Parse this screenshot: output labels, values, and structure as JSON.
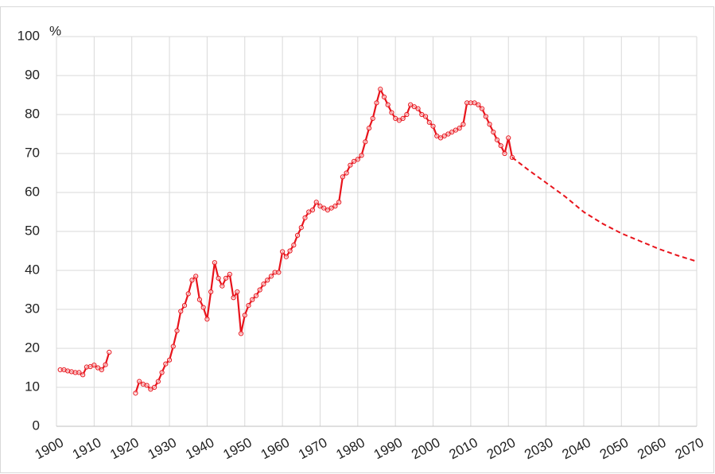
{
  "chart_data": {
    "type": "line",
    "y_unit": "%",
    "xlim": [
      1900,
      2070
    ],
    "xticks": [
      1900,
      1910,
      1920,
      1930,
      1940,
      1950,
      1960,
      1970,
      1980,
      1990,
      2000,
      2010,
      2020,
      2030,
      2040,
      2050,
      2060,
      2070
    ],
    "ylim": [
      0,
      100
    ],
    "yticks": [
      0,
      10,
      20,
      30,
      40,
      50,
      60,
      70,
      80,
      90,
      100
    ],
    "grid": true,
    "series": [
      {
        "color": "#e8141c",
        "dashed": false,
        "markers": true,
        "x": [
          1901,
          1902,
          1903,
          1904,
          1905,
          1906,
          1907,
          1908,
          1909,
          1910,
          1911,
          1912,
          1913,
          1914,
          1915,
          1916,
          1917,
          1918,
          1919,
          1920,
          1921,
          1922,
          1923,
          1924,
          1925,
          1926,
          1927,
          1928,
          1929,
          1930,
          1931,
          1932,
          1933,
          1934,
          1935,
          1936,
          1937,
          1938,
          1939,
          1940,
          1941,
          1942,
          1943,
          1944,
          1945,
          1946,
          1947,
          1948,
          1949,
          1950,
          1951,
          1952,
          1953,
          1954,
          1955,
          1956,
          1957,
          1958,
          1959,
          1960,
          1961,
          1962,
          1963,
          1964,
          1965,
          1966,
          1967,
          1968,
          1969,
          1970,
          1971,
          1972,
          1973,
          1974,
          1975,
          1976,
          1977,
          1978,
          1979,
          1980,
          1981,
          1982,
          1983,
          1984,
          1985,
          1986,
          1987,
          1988,
          1989,
          1990,
          1991,
          1992,
          1993,
          1994,
          1995,
          1996,
          1997,
          1998,
          1999,
          2000,
          2001,
          2002,
          2003,
          2004,
          2005,
          2006,
          2007,
          2008,
          2009,
          2010,
          2011,
          2012,
          2013,
          2014,
          2015,
          2016,
          2017,
          2018,
          2019,
          2020,
          2021
        ],
        "values": [
          14.5,
          14.5,
          14.2,
          14.0,
          13.8,
          13.8,
          13.2,
          15.2,
          15.3,
          15.7,
          15.0,
          14.5,
          15.8,
          19.0,
          null,
          null,
          null,
          null,
          null,
          null,
          8.5,
          11.5,
          10.8,
          10.5,
          9.5,
          10.0,
          11.5,
          13.8,
          16.0,
          17.0,
          20.5,
          24.5,
          29.5,
          31.0,
          34.0,
          37.5,
          38.5,
          32.5,
          30.5,
          27.5,
          34.5,
          42.0,
          38.0,
          36.0,
          38.0,
          39.0,
          33.0,
          34.5,
          23.8,
          28.5,
          31.0,
          32.5,
          33.5,
          35.0,
          36.5,
          37.5,
          38.5,
          39.5,
          39.5,
          44.8,
          43.5,
          45.0,
          46.5,
          49.0,
          51.0,
          53.5,
          55.0,
          55.5,
          57.5,
          56.5,
          56.0,
          55.5,
          56.0,
          56.5,
          57.5,
          64.0,
          65.0,
          67.0,
          68.0,
          68.5,
          69.5,
          73.0,
          76.5,
          79.0,
          83.0,
          86.5,
          84.5,
          82.5,
          80.5,
          79.0,
          78.5,
          79.0,
          80.0,
          82.5,
          82.0,
          81.5,
          80.0,
          79.5,
          78.0,
          77.0,
          74.5,
          74.0,
          74.5,
          75.0,
          75.5,
          76.0,
          76.5,
          77.5,
          83.0,
          83.0,
          83.0,
          82.5,
          81.5,
          79.5,
          77.5,
          75.5,
          73.5,
          72.0,
          70.0,
          74.0,
          69.0
        ]
      },
      {
        "color": "#e8141c",
        "dashed": true,
        "markers": false,
        "x": [
          2021,
          2025,
          2030,
          2035,
          2040,
          2045,
          2050,
          2055,
          2060,
          2065,
          2070
        ],
        "values": [
          69.0,
          66.0,
          62.5,
          59.0,
          55.0,
          52.0,
          49.5,
          47.5,
          45.5,
          43.8,
          42.3
        ]
      }
    ]
  }
}
